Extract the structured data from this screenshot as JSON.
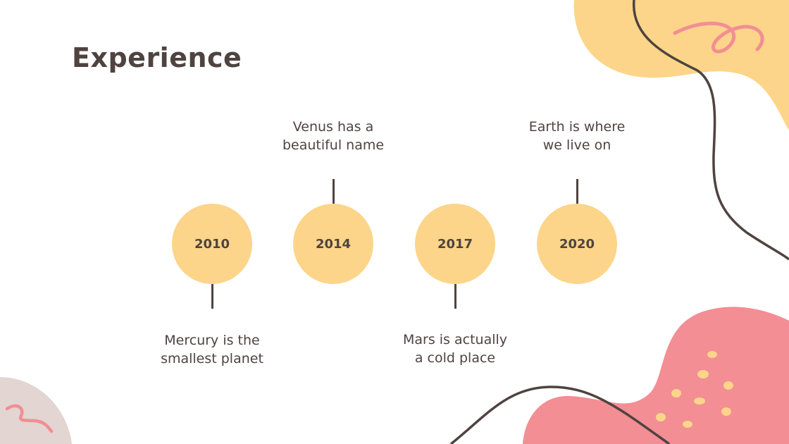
{
  "title": "Experience",
  "timeline": [
    {
      "year": "2010",
      "line1": "Mercury is the",
      "line2": "smallest planet",
      "position": "below"
    },
    {
      "year": "2014",
      "line1": "Venus has a",
      "line2": "beautiful name",
      "position": "above"
    },
    {
      "year": "2017",
      "line1": "Mars is actually",
      "line2": "a cold place",
      "position": "below"
    },
    {
      "year": "2020",
      "line1": "Earth is where",
      "line2": "we live on",
      "position": "above"
    }
  ],
  "colors": {
    "circle": "#fcd58a",
    "text": "#4f4340",
    "pink": "#f28e94",
    "yellow": "#fcd58a",
    "grey": "#e2d5d2"
  }
}
